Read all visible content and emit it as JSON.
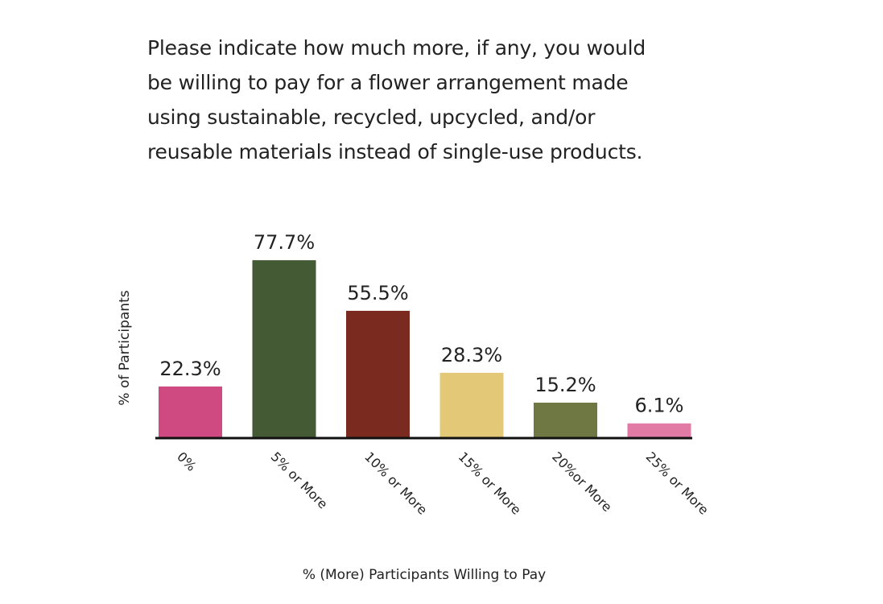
{
  "chart_data": {
    "type": "bar",
    "title": "Please indicate how much more, if any, you would be willing to pay for a flower arrangement made using sustainable, recycled, upcycled, and/or reusable materials instead of single-use products.",
    "title_lines": [
      "Please indicate how much more, if any, you would",
      "be willing to pay for a flower arrangement made",
      "using sustainable, recycled, upcycled, and/or",
      "reusable materials instead of single-use products."
    ],
    "xlabel": "% (More) Participants Willing to Pay",
    "ylabel": "% of Participants",
    "categories": [
      "0%",
      "5% or More",
      "10% or More",
      "15% or More",
      "20%or More",
      "25% or More"
    ],
    "values": [
      22.3,
      77.7,
      55.5,
      28.3,
      15.2,
      6.1
    ],
    "data_labels": [
      "22.3%",
      "77.7%",
      "55.5%",
      "28.3%",
      "15.2%",
      "6.1%"
    ],
    "colors": [
      "#d04a82",
      "#445a35",
      "#7a2a1e",
      "#e3c877",
      "#6f7842",
      "#e27aa6"
    ],
    "ylim": [
      0,
      80
    ],
    "grid": false,
    "legend": "none"
  }
}
